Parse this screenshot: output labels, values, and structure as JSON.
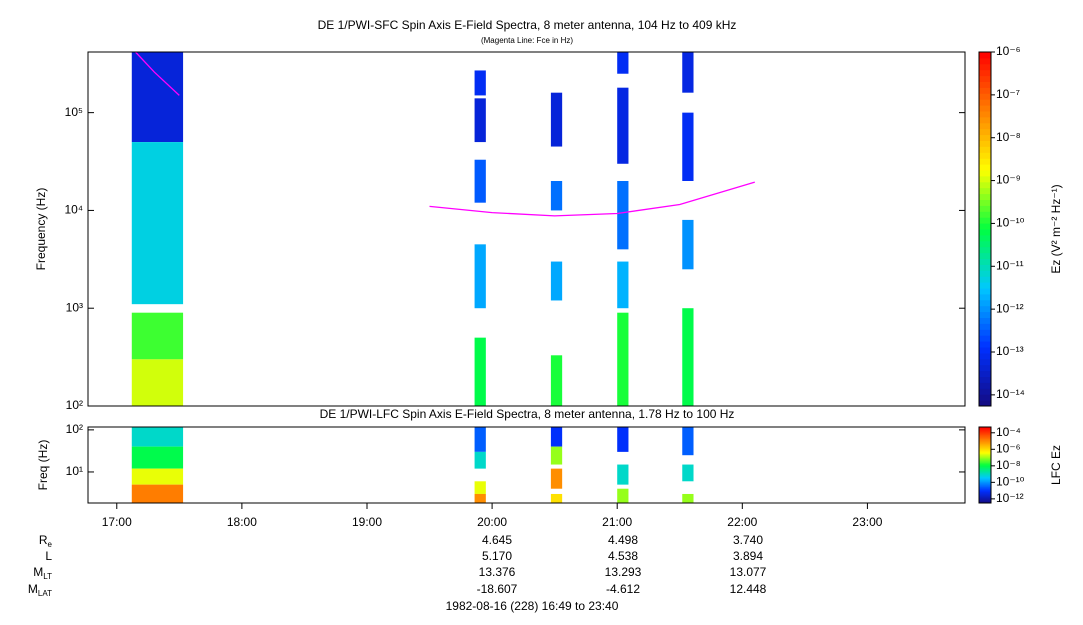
{
  "chart_data": [
    {
      "type": "spectrogram",
      "title": "DE 1/PWI-SFC  Spin Axis E-Field Spectra, 8 meter antenna, 104 Hz to 409 kHz",
      "subtitle": "(Magenta Line: Fce in Hz)",
      "ylabel": "Frequency (Hz)",
      "ylog": true,
      "xlim": [
        16.77,
        23.78
      ],
      "ylim": [
        100,
        417000
      ],
      "yticks": [
        {
          "value": 100,
          "label": "10²"
        },
        {
          "value": 1000,
          "label": "10³"
        },
        {
          "value": 10000,
          "label": "10⁴"
        },
        {
          "value": 100000,
          "label": "10⁵"
        }
      ],
      "colorbar_label": "Ez (V² m⁻² Hz⁻¹)",
      "zlim": [
        -14.26,
        -6
      ],
      "zticks": [
        {
          "value": -14,
          "label": "10⁻¹⁴"
        },
        {
          "value": -13,
          "label": "10⁻¹³"
        },
        {
          "value": -12,
          "label": "10⁻¹²"
        },
        {
          "value": -11,
          "label": "10⁻¹¹"
        },
        {
          "value": -10,
          "label": "10⁻¹⁰"
        },
        {
          "value": -9,
          "label": "10⁻⁹"
        },
        {
          "value": -8,
          "label": "10⁻⁸"
        },
        {
          "value": -7,
          "label": "10⁻⁷"
        },
        {
          "value": -6,
          "label": "10⁻⁶"
        }
      ],
      "colormap": [
        "#140a80",
        "#0030ff",
        "#00c8ff",
        "#00ff40",
        "#ffff00",
        "#ff8000",
        "#ff0000"
      ],
      "columns": [
        {
          "x0": 17.12,
          "x1": 17.53,
          "cells": [
            {
              "y0": 50000,
              "y1": 417000,
              "z": -13.3
            },
            {
              "y0": 1100,
              "y1": 50000,
              "z": -11.3
            },
            {
              "y0": 300,
              "y1": 900,
              "z": -9.8
            },
            {
              "y0": 100,
              "y1": 300,
              "z": -9
            }
          ]
        },
        {
          "x0": 19.86,
          "x1": 19.95,
          "cells": [
            {
              "y0": 150000,
              "y1": 270000,
              "z": -13
            },
            {
              "y0": 50000,
              "y1": 140000,
              "z": -13.3
            },
            {
              "y0": 12000,
              "y1": 33000,
              "z": -12.5
            },
            {
              "y0": 1000,
              "y1": 4500,
              "z": -11.8
            },
            {
              "y0": 100,
              "y1": 500,
              "z": -10.2
            }
          ]
        },
        {
          "x0": 20.47,
          "x1": 20.56,
          "cells": [
            {
              "y0": 45000,
              "y1": 160000,
              "z": -13.3
            },
            {
              "y0": 10000,
              "y1": 20000,
              "z": -12.3
            },
            {
              "y0": 1200,
              "y1": 3000,
              "z": -11.8
            },
            {
              "y0": 100,
              "y1": 330,
              "z": -10
            }
          ]
        },
        {
          "x0": 21.0,
          "x1": 21.09,
          "cells": [
            {
              "y0": 250000,
              "y1": 417000,
              "z": -13
            },
            {
              "y0": 30000,
              "y1": 180000,
              "z": -13.2
            },
            {
              "y0": 4000,
              "y1": 20000,
              "z": -12.3
            },
            {
              "y0": 1000,
              "y1": 3000,
              "z": -11.7
            },
            {
              "y0": 100,
              "y1": 900,
              "z": -10
            }
          ]
        },
        {
          "x0": 21.52,
          "x1": 21.61,
          "cells": [
            {
              "y0": 160000,
              "y1": 417000,
              "z": -13.2
            },
            {
              "y0": 20000,
              "y1": 100000,
              "z": -13
            },
            {
              "y0": 2500,
              "y1": 8000,
              "z": -12
            },
            {
              "y0": 100,
              "y1": 1000,
              "z": -10.2
            }
          ]
        }
      ],
      "lines": [
        {
          "color": "#ff00ff",
          "x": [
            17.15,
            17.3,
            17.5
          ],
          "y": [
            417000,
            260000,
            150000
          ]
        },
        {
          "color": "#ff00ff",
          "x": [
            19.5,
            20.0,
            20.5,
            21.0,
            21.5,
            22.1
          ],
          "y": [
            11000,
            9500,
            8800,
            9300,
            11500,
            19500
          ]
        }
      ]
    },
    {
      "type": "spectrogram",
      "title": "DE 1/PWI-LFC  Spin Axis E-Field Spectra, 8 meter antenna, 1.78 Hz to 100 Hz",
      "ylabel": "Freq (Hz)",
      "ylog": true,
      "xlim": [
        16.77,
        23.78
      ],
      "ylim": [
        1.83,
        117
      ],
      "yticks": [
        {
          "value": 10,
          "label": "10¹"
        },
        {
          "value": 100,
          "label": "10²"
        }
      ],
      "xticks": [
        {
          "value": 17,
          "label": "17:00"
        },
        {
          "value": 18,
          "label": "18:00"
        },
        {
          "value": 19,
          "label": "19:00"
        },
        {
          "value": 20,
          "label": "20:00"
        },
        {
          "value": 21,
          "label": "21:00"
        },
        {
          "value": 22,
          "label": "22:00"
        },
        {
          "value": 23,
          "label": "23:00"
        }
      ],
      "colorbar_label": "LFC Ez",
      "zlim": [
        -12.5,
        -3.3
      ],
      "zticks": [
        {
          "value": -4,
          "label": "10⁻⁴"
        },
        {
          "value": -6,
          "label": "10⁻⁶"
        },
        {
          "value": -8,
          "label": "10⁻⁸"
        },
        {
          "value": -10,
          "label": "10⁻¹⁰"
        },
        {
          "value": -12,
          "label": "10⁻¹²"
        }
      ],
      "colormap": [
        "#140a80",
        "#0030ff",
        "#00c8ff",
        "#00ff40",
        "#ffff00",
        "#ff8000",
        "#ff0000"
      ],
      "columns": [
        {
          "x0": 17.12,
          "x1": 17.53,
          "cells": [
            {
              "y0": 40,
              "y1": 117,
              "z": -9
            },
            {
              "y0": 12,
              "y1": 40,
              "z": -8
            },
            {
              "y0": 5,
              "y1": 12,
              "z": -6.5
            },
            {
              "y0": 1.83,
              "y1": 5,
              "z": -4.8
            }
          ]
        },
        {
          "x0": 19.86,
          "x1": 19.95,
          "cells": [
            {
              "y0": 30,
              "y1": 117,
              "z": -10.5
            },
            {
              "y0": 12,
              "y1": 30,
              "z": -9
            },
            {
              "y0": 3,
              "y1": 6,
              "z": -6.5
            },
            {
              "y0": 1.83,
              "y1": 3,
              "z": -5
            }
          ]
        },
        {
          "x0": 20.47,
          "x1": 20.56,
          "cells": [
            {
              "y0": 40,
              "y1": 117,
              "z": -11
            },
            {
              "y0": 15,
              "y1": 40,
              "z": -7
            },
            {
              "y0": 4,
              "y1": 12,
              "z": -5
            },
            {
              "y0": 1.83,
              "y1": 3,
              "z": -6
            }
          ]
        },
        {
          "x0": 21.0,
          "x1": 21.09,
          "cells": [
            {
              "y0": 30,
              "y1": 117,
              "z": -11
            },
            {
              "y0": 5,
              "y1": 15,
              "z": -9
            },
            {
              "y0": 1.83,
              "y1": 4,
              "z": -7
            }
          ]
        },
        {
          "x0": 21.52,
          "x1": 21.61,
          "cells": [
            {
              "y0": 25,
              "y1": 117,
              "z": -10.5
            },
            {
              "y0": 6,
              "y1": 15,
              "z": -9
            },
            {
              "y0": 1.83,
              "y1": 3,
              "z": -7
            }
          ]
        }
      ]
    }
  ],
  "ephemeris": {
    "rows": [
      {
        "label": "R",
        "sub": "e",
        "values": [
          "4.645",
          "4.498",
          "3.740"
        ]
      },
      {
        "label": "L",
        "values": [
          "5.170",
          "4.538",
          "3.894"
        ]
      },
      {
        "label": "M",
        "sub": "LT",
        "values": [
          "13.376",
          "13.293",
          "13.077"
        ]
      },
      {
        "label": "M",
        "sub": "LAT",
        "values": [
          "-18.607",
          "-4.612",
          "12.448"
        ]
      }
    ],
    "footer": "1982-08-16 (228) 16:49 to 23:40"
  }
}
